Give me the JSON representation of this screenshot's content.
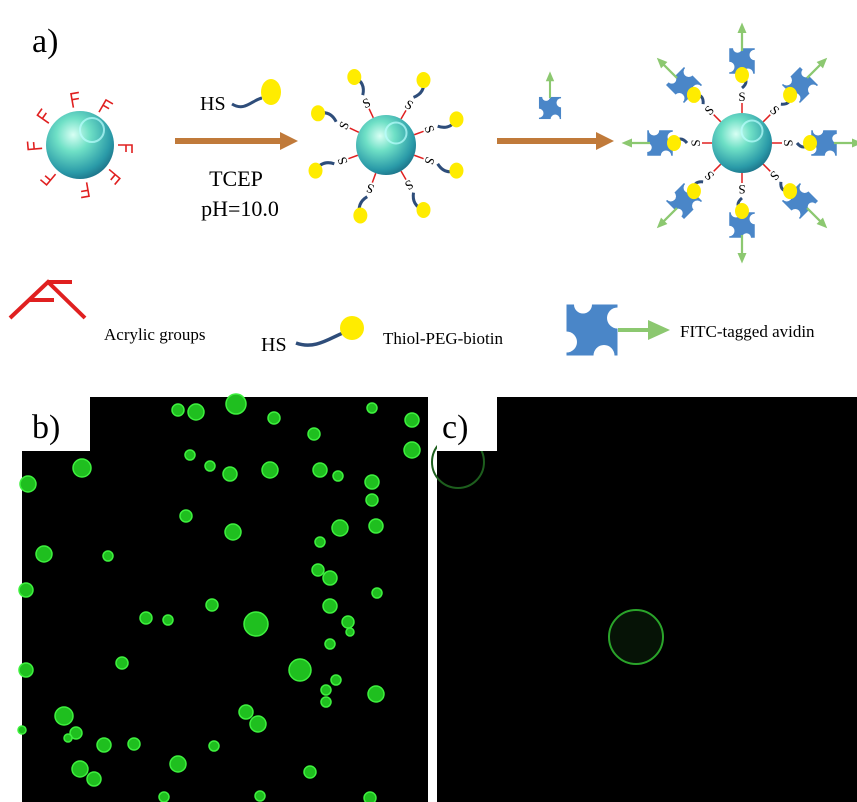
{
  "panel_a": {
    "label": "a)",
    "reagent": "HS",
    "condition_1": "TCEP",
    "condition_2": "pH=10.0",
    "arm_label": "S"
  },
  "legend": {
    "acrylic": "Acrylic groups",
    "thiol_prefix": "HS",
    "thiol": "Thiol-PEG-biotin",
    "avidin": "FITC-tagged avidin"
  },
  "panel_b": {
    "label": "b)"
  },
  "panel_c": {
    "label": "c)"
  }
}
